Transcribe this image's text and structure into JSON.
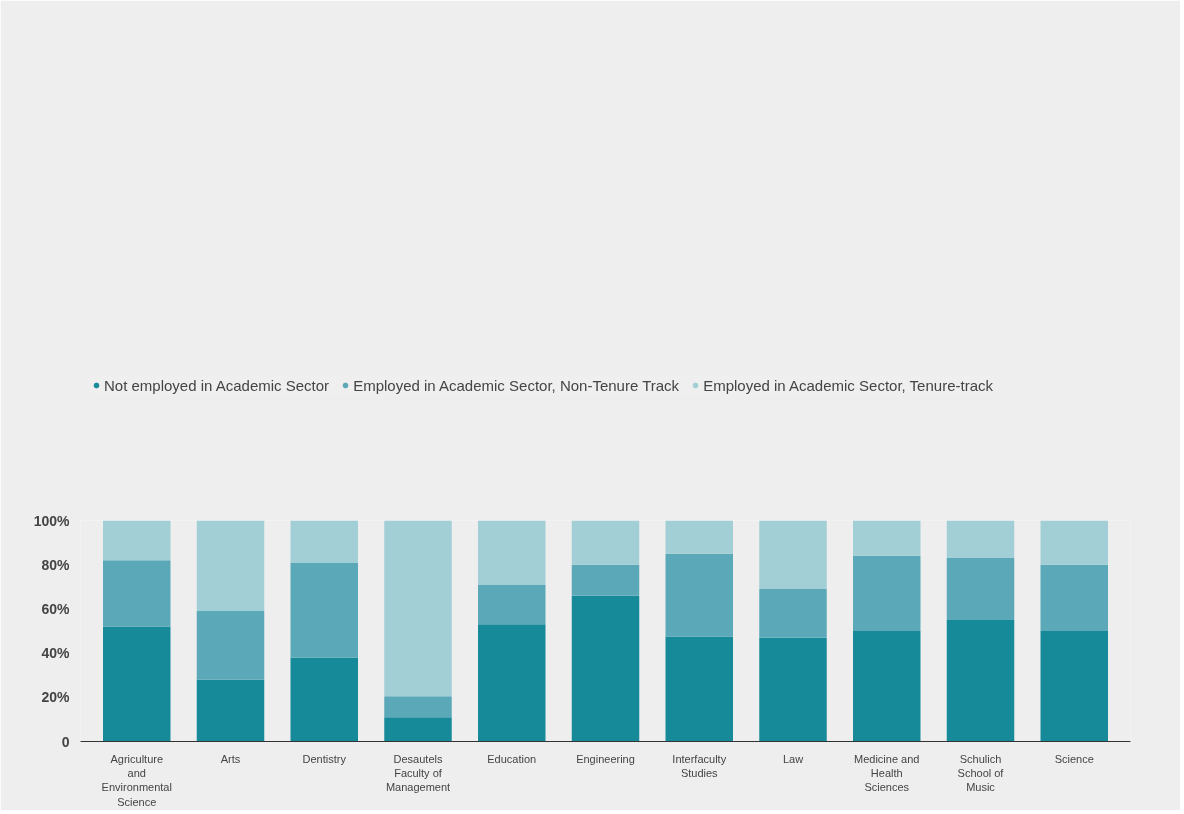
{
  "chart_data": {
    "type": "bar",
    "stacked": true,
    "categories": [
      "Agriculture and Environmental Science",
      "Arts",
      "Dentistry",
      "Desautels Faculty of Management",
      "Education",
      "Engineering",
      "Interfaculty Studies",
      "Law",
      "Medicine and Health Sciences",
      "Schulich School of Music",
      "Science"
    ],
    "series": [
      {
        "name": "Not employed in Academic Sector",
        "color": "#178a99",
        "values": [
          52,
          28,
          38,
          11,
          53,
          66,
          47.5,
          47,
          50,
          55,
          50
        ]
      },
      {
        "name": "Employed in Academic Sector, Non-Tenure Track",
        "color": "#5ba9b8",
        "values": [
          30,
          31,
          43,
          9.5,
          18,
          14,
          37.5,
          22,
          34,
          28,
          30
        ]
      },
      {
        "name": "Employed in Academic Sector, Tenure-track",
        "color": "#a1cfd5",
        "values": [
          18,
          41,
          19,
          79.5,
          29,
          20,
          15,
          31,
          16,
          17,
          20
        ]
      }
    ],
    "ylim": [
      0,
      100
    ],
    "yticks": [
      {
        "value": 0,
        "label": "0"
      },
      {
        "value": 20,
        "label": "20%"
      },
      {
        "value": 40,
        "label": "40%"
      },
      {
        "value": 60,
        "label": "60%"
      },
      {
        "value": 80,
        "label": "80%"
      },
      {
        "value": 100,
        "label": "100%"
      }
    ],
    "grid": false,
    "legend": "top left",
    "marker": "circle"
  }
}
